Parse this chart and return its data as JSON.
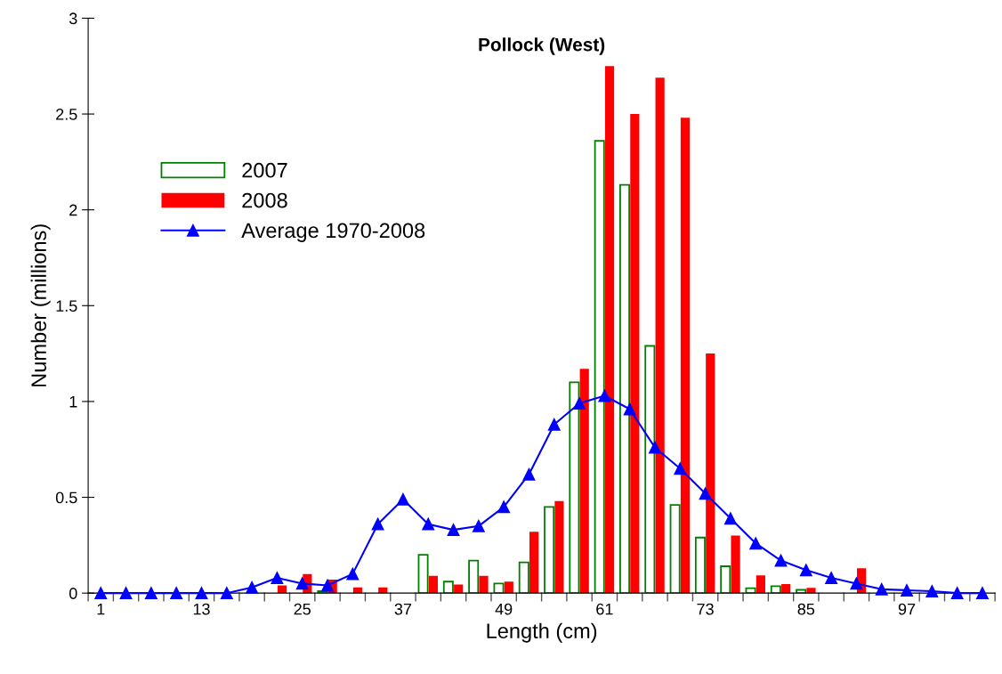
{
  "chart_data": {
    "type": "bar",
    "title": "Pollock (West)",
    "xlabel": "Length (cm)",
    "ylabel": "Number (millions)",
    "categories": [
      "1",
      null,
      null,
      null,
      "13",
      null,
      null,
      null,
      "25",
      null,
      null,
      null,
      "37",
      null,
      null,
      null,
      "49",
      null,
      null,
      null,
      "61",
      null,
      null,
      null,
      "73",
      null,
      null,
      null,
      "85",
      null,
      null,
      null,
      "97",
      null,
      null,
      null
    ],
    "series": [
      {
        "name": "2007",
        "color": "#008000",
        "values": [
          null,
          null,
          null,
          null,
          null,
          null,
          null,
          null,
          null,
          0.01,
          null,
          null,
          null,
          0.2,
          0.06,
          0.17,
          0.05,
          0.16,
          0.45,
          1.1,
          2.36,
          2.13,
          1.29,
          0.46,
          0.29,
          0.14,
          0.026,
          0.036,
          0.017,
          null,
          null,
          null,
          null,
          null,
          null,
          null
        ]
      },
      {
        "name": "2008",
        "color": "#ff0000",
        "values": [
          null,
          null,
          null,
          null,
          null,
          null,
          null,
          0.04,
          0.1,
          0.07,
          0.03,
          0.03,
          null,
          0.09,
          0.045,
          0.09,
          0.06,
          0.32,
          0.48,
          1.17,
          2.75,
          2.5,
          2.69,
          2.48,
          1.25,
          0.3,
          0.093,
          0.047,
          0.028,
          null,
          0.13,
          null,
          null,
          null,
          null,
          null
        ]
      },
      {
        "name": "Average 1970-2008",
        "color": "#0000ff",
        "type": "line",
        "marker": "triangle",
        "values": [
          0,
          0,
          0,
          0,
          0,
          0,
          0.03,
          0.08,
          0.05,
          0.04,
          0.1,
          0.36,
          0.49,
          0.36,
          0.33,
          0.35,
          0.45,
          0.62,
          0.88,
          0.99,
          1.03,
          0.96,
          0.76,
          0.65,
          0.52,
          0.39,
          0.26,
          0.17,
          0.12,
          0.08,
          0.05,
          0.02,
          0.015,
          0.01,
          0,
          0
        ]
      }
    ],
    "ylim": [
      0,
      3
    ],
    "yticks": [
      0,
      0.5,
      1,
      1.5,
      2,
      2.5,
      3
    ],
    "grid": false,
    "legend": "left"
  }
}
